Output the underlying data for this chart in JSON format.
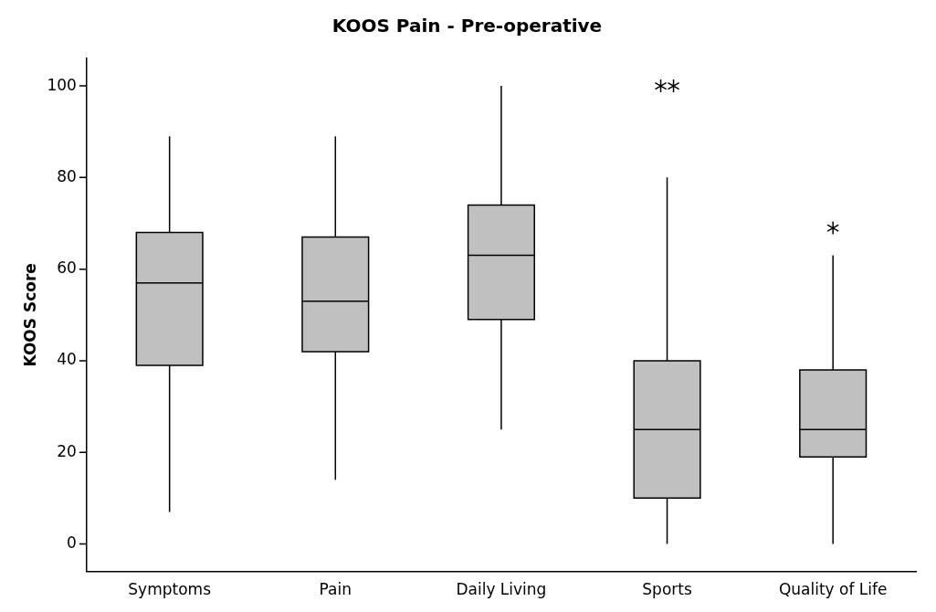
{
  "chart_data": {
    "type": "box",
    "title": "KOOS Pain - Pre-operative",
    "ylabel": "KOOS Score",
    "categories": [
      "Symptoms",
      "Pain",
      "Daily Living",
      "Sports",
      "Quality of Life"
    ],
    "color": "#c0c0c0",
    "marker": "star",
    "grid": false,
    "legend": false,
    "ylim": [
      -6,
      106
    ],
    "yticks": [
      0,
      20,
      40,
      60,
      80,
      100
    ],
    "boxes": [
      {
        "low": 7,
        "q1": 39,
        "median": 57,
        "q3": 68,
        "high": 89
      },
      {
        "low": 14,
        "q1": 42,
        "median": 53,
        "q3": 67,
        "high": 89
      },
      {
        "low": 25,
        "q1": 49,
        "median": 63,
        "q3": 74,
        "high": 100
      },
      {
        "low": 0,
        "q1": 10,
        "median": 25,
        "q3": 40,
        "high": 80,
        "outliers": [
          100,
          100
        ]
      },
      {
        "low": 0,
        "q1": 19,
        "median": 25,
        "q3": 38,
        "high": 63,
        "outliers": [
          69
        ]
      }
    ]
  }
}
